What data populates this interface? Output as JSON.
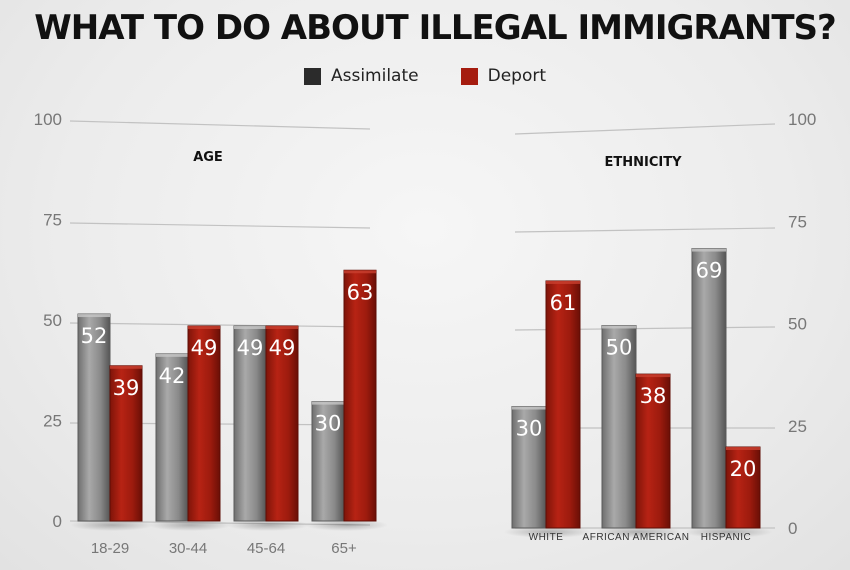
{
  "title": "WHAT TO DO ABOUT ILLEGAL IMMIGRANTS?",
  "legend": [
    {
      "label": "Assimilate",
      "color": "#2b2b2b"
    },
    {
      "label": "Deport",
      "color": "#a51c0f"
    }
  ],
  "colors": {
    "assimilate": "#8d8d8d",
    "deport": "#a51c0f"
  },
  "chart_data": [
    {
      "type": "bar",
      "title": "AGE",
      "categories": [
        "18-29",
        "30-44",
        "45-64",
        "65+"
      ],
      "series": [
        {
          "name": "Assimilate",
          "values": [
            52,
            42,
            49,
            30
          ]
        },
        {
          "name": "Deport",
          "values": [
            39,
            49,
            49,
            63
          ]
        }
      ],
      "yticks": [
        0,
        25,
        50,
        75,
        100
      ],
      "ylim": [
        0,
        100
      ],
      "grid": true,
      "axis_side": "left"
    },
    {
      "type": "bar",
      "title": "ETHNICITY",
      "categories": [
        "WHITE",
        "AFRICAN AMERICAN",
        "HISPANIC"
      ],
      "series": [
        {
          "name": "Assimilate",
          "values": [
            30,
            50,
            69
          ]
        },
        {
          "name": "Deport",
          "values": [
            61,
            38,
            20
          ]
        }
      ],
      "yticks": [
        0,
        25,
        50,
        75,
        100
      ],
      "ylim": [
        0,
        100
      ],
      "grid": true,
      "axis_side": "right"
    }
  ]
}
